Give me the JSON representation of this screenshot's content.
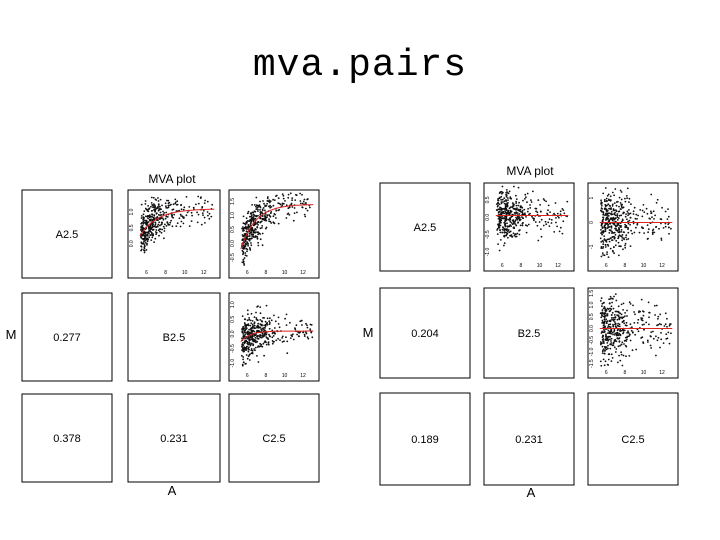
{
  "slide": {
    "title": "mva.pairs"
  },
  "chart_data": [
    {
      "type": "scatter",
      "title": "MVA plot",
      "xlabel": "A",
      "ylabel": "M",
      "arrays": [
        "A2.5",
        "B2.5",
        "C2.5"
      ],
      "correlations": [
        {
          "row": "B2.5",
          "col": "A2.5",
          "value": "0.277"
        },
        {
          "row": "C2.5",
          "col": "A2.5",
          "value": "0.378"
        },
        {
          "row": "C2.5",
          "col": "B2.5",
          "value": "0.231"
        }
      ],
      "panels": [
        {
          "pair": "A2.5-B2.5",
          "xticks": [
            "6",
            "8",
            "10",
            "12"
          ],
          "yticks": [
            "1.0",
            "0.5",
            "0.0"
          ],
          "xlim": [
            5,
            13.5
          ],
          "ylim": [
            -0.7,
            1.6
          ]
        },
        {
          "pair": "A2.5-C2.5",
          "xticks": [
            "6",
            "8",
            "10",
            "12"
          ],
          "yticks": [
            "1.5",
            "1.0",
            "0.5",
            "0.0",
            "-0.5"
          ],
          "xlim": [
            5,
            13.5
          ],
          "ylim": [
            -0.8,
            1.8
          ]
        },
        {
          "pair": "B2.5-C2.5",
          "xticks": [
            "6",
            "8",
            "10",
            "12"
          ],
          "yticks": [
            "1.0",
            "0.5",
            "0.0",
            "-0.5",
            "-1.0"
          ],
          "xlim": [
            5,
            13.5
          ],
          "ylim": [
            -1.2,
            1.3
          ]
        }
      ]
    },
    {
      "type": "scatter",
      "title": "MVA plot",
      "xlabel": "A",
      "ylabel": "M",
      "arrays": [
        "A2.5",
        "B2.5",
        "C2.5"
      ],
      "correlations": [
        {
          "row": "B2.5",
          "col": "A2.5",
          "value": "0.204"
        },
        {
          "row": "C2.5",
          "col": "A2.5",
          "value": "0.189"
        },
        {
          "row": "C2.5",
          "col": "B2.5",
          "value": "0.231"
        }
      ],
      "panels": [
        {
          "pair": "A2.5-B2.5",
          "xticks": [
            "6",
            "8",
            "10",
            "12"
          ],
          "yticks": [
            "0.5",
            "0.0",
            "-0.5",
            "-1.0"
          ],
          "xlim": [
            5,
            13.5
          ],
          "ylim": [
            -1.2,
            0.9
          ]
        },
        {
          "pair": "A2.5-C2.5",
          "xticks": [
            "6",
            "8",
            "10",
            "12"
          ],
          "yticks": [
            "1",
            "0",
            "-1"
          ],
          "xlim": [
            5,
            13.5
          ],
          "ylim": [
            -1.5,
            1.5
          ]
        },
        {
          "pair": "B2.5-C2.5",
          "xticks": [
            "6",
            "8",
            "10",
            "12"
          ],
          "yticks": [
            "1.5",
            "1.0",
            "0.5",
            "0.0",
            "-0.5",
            "-1.0",
            "-1.5"
          ],
          "xlim": [
            5,
            13.5
          ],
          "ylim": [
            -1.6,
            1.6
          ]
        }
      ]
    }
  ]
}
